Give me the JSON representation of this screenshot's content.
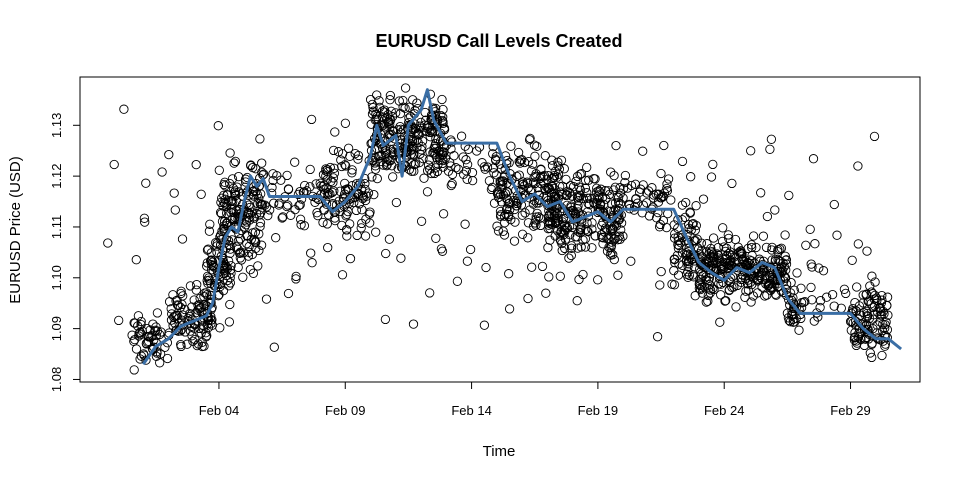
{
  "chart_data": {
    "type": "scatter",
    "title": "EURUSD Call Levels Created",
    "xlabel": "Time",
    "ylabel": "EURUSD Price (USD)",
    "xlim": [
      "2016-01-29T12:00",
      "2016-03-02T18:00"
    ],
    "ylim": [
      1.0795,
      1.1395
    ],
    "x_ticks": [
      {
        "date": "2016-02-04",
        "label": "Feb 04"
      },
      {
        "date": "2016-02-09",
        "label": "Feb 09"
      },
      {
        "date": "2016-02-14",
        "label": "Feb 14"
      },
      {
        "date": "2016-02-19",
        "label": "Feb 19"
      },
      {
        "date": "2016-02-24",
        "label": "Feb 24"
      },
      {
        "date": "2016-02-29",
        "label": "Feb 29"
      }
    ],
    "y_ticks": [
      1.08,
      1.09,
      1.1,
      1.11,
      1.12,
      1.13
    ],
    "y_tick_labels": [
      "1.08",
      "1.09",
      "1.10",
      "1.11",
      "1.12",
      "1.13"
    ],
    "grid": false,
    "series": [
      {
        "kind": "price-line",
        "color": "#3a6ea5",
        "points": [
          [
            "2016-02-01T00:00",
            1.083
          ],
          [
            "2016-02-01T12:00",
            1.0865
          ],
          [
            "2016-02-02T00:00",
            1.088
          ],
          [
            "2016-02-02T12:00",
            1.0905
          ],
          [
            "2016-02-03T00:00",
            1.0915
          ],
          [
            "2016-02-03T12:00",
            1.0925
          ],
          [
            "2016-02-03T18:00",
            1.095
          ],
          [
            "2016-02-04T00:00",
            1.102
          ],
          [
            "2016-02-04T06:00",
            1.108
          ],
          [
            "2016-02-04T12:00",
            1.11
          ],
          [
            "2016-02-04T18:00",
            1.109
          ],
          [
            "2016-02-05T00:00",
            1.115
          ],
          [
            "2016-02-05T06:00",
            1.12
          ],
          [
            "2016-02-05T12:00",
            1.118
          ],
          [
            "2016-02-05T18:00",
            1.1195
          ],
          [
            "2016-02-06T00:00",
            1.116
          ],
          [
            "2016-02-08T00:00",
            1.116
          ],
          [
            "2016-02-08T12:00",
            1.113
          ],
          [
            "2016-02-09T00:00",
            1.115
          ],
          [
            "2016-02-09T12:00",
            1.118
          ],
          [
            "2016-02-10T00:00",
            1.124
          ],
          [
            "2016-02-10T06:00",
            1.13
          ],
          [
            "2016-02-10T12:00",
            1.126
          ],
          [
            "2016-02-11T00:00",
            1.128
          ],
          [
            "2016-02-11T06:00",
            1.12
          ],
          [
            "2016-02-11T12:00",
            1.13
          ],
          [
            "2016-02-12T00:00",
            1.133
          ],
          [
            "2016-02-12T06:00",
            1.137
          ],
          [
            "2016-02-12T12:00",
            1.131
          ],
          [
            "2016-02-13T00:00",
            1.1265
          ],
          [
            "2016-02-15T00:00",
            1.1265
          ],
          [
            "2016-02-15T12:00",
            1.12
          ],
          [
            "2016-02-16T00:00",
            1.115
          ],
          [
            "2016-02-16T12:00",
            1.1165
          ],
          [
            "2016-02-17T00:00",
            1.114
          ],
          [
            "2016-02-17T12:00",
            1.115
          ],
          [
            "2016-02-18T00:00",
            1.111
          ],
          [
            "2016-02-18T12:00",
            1.112
          ],
          [
            "2016-02-19T00:00",
            1.113
          ],
          [
            "2016-02-19T12:00",
            1.111
          ],
          [
            "2016-02-20T00:00",
            1.1135
          ],
          [
            "2016-02-22T00:00",
            1.1135
          ],
          [
            "2016-02-22T12:00",
            1.108
          ],
          [
            "2016-02-23T00:00",
            1.103
          ],
          [
            "2016-02-23T12:00",
            1.101
          ],
          [
            "2016-02-24T00:00",
            1.0995
          ],
          [
            "2016-02-24T12:00",
            1.102
          ],
          [
            "2016-02-25T00:00",
            1.101
          ],
          [
            "2016-02-25T12:00",
            1.103
          ],
          [
            "2016-02-26T00:00",
            1.102
          ],
          [
            "2016-02-26T12:00",
            1.096
          ],
          [
            "2016-02-27T00:00",
            1.093
          ],
          [
            "2016-02-29T00:00",
            1.093
          ],
          [
            "2016-02-29T12:00",
            1.09
          ],
          [
            "2016-03-01T00:00",
            1.088
          ],
          [
            "2016-03-01T12:00",
            1.088
          ],
          [
            "2016-03-02T00:00",
            1.086
          ]
        ]
      },
      {
        "kind": "call-levels",
        "marker": "open-circle",
        "color": "#000000",
        "clusters": [
          {
            "t0": "2016-01-31T12:00",
            "t1": "2016-02-02T00:00",
            "lo": 1.08,
            "hi": 1.095,
            "n": 55
          },
          {
            "t0": "2016-02-02T00:00",
            "t1": "2016-02-03T18:00",
            "lo": 1.084,
            "hi": 1.1,
            "n": 100
          },
          {
            "t0": "2016-02-03T12:00",
            "t1": "2016-02-04T12:00",
            "lo": 1.088,
            "hi": 1.115,
            "n": 80
          },
          {
            "t0": "2016-02-04T00:00",
            "t1": "2016-02-05T18:00",
            "lo": 1.098,
            "hi": 1.128,
            "n": 160
          },
          {
            "t0": "2016-02-05T18:00",
            "t1": "2016-02-08T00:00",
            "lo": 1.108,
            "hi": 1.123,
            "n": 40
          },
          {
            "t0": "2016-02-08T00:00",
            "t1": "2016-02-10T00:00",
            "lo": 1.105,
            "hi": 1.128,
            "n": 110
          },
          {
            "t0": "2016-02-10T00:00",
            "t1": "2016-02-13T00:00",
            "lo": 1.115,
            "hi": 1.139,
            "n": 260
          },
          {
            "t0": "2016-02-13T00:00",
            "t1": "2016-02-15T12:00",
            "lo": 1.115,
            "hi": 1.13,
            "n": 40
          },
          {
            "t0": "2016-02-15T00:00",
            "t1": "2016-02-17T12:00",
            "lo": 1.105,
            "hi": 1.129,
            "n": 160
          },
          {
            "t0": "2016-02-17T00:00",
            "t1": "2016-02-20T00:00",
            "lo": 1.1,
            "hi": 1.125,
            "n": 230
          },
          {
            "t0": "2016-02-20T00:00",
            "t1": "2016-02-22T00:00",
            "lo": 1.108,
            "hi": 1.125,
            "n": 40
          },
          {
            "t0": "2016-02-22T00:00",
            "t1": "2016-02-23T00:00",
            "lo": 1.095,
            "hi": 1.117,
            "n": 70
          },
          {
            "t0": "2016-02-23T00:00",
            "t1": "2016-02-26T12:00",
            "lo": 1.093,
            "hi": 1.11,
            "n": 280
          },
          {
            "t0": "2016-02-26T12:00",
            "t1": "2016-02-27T06:00",
            "lo": 1.089,
            "hi": 1.1,
            "n": 30
          },
          {
            "t0": "2016-02-27T00:00",
            "t1": "2016-02-29T00:00",
            "lo": 1.09,
            "hi": 1.1,
            "n": 12
          },
          {
            "t0": "2016-02-29T00:00",
            "t1": "2016-03-01T12:00",
            "lo": 1.082,
            "hi": 1.102,
            "n": 110
          },
          {
            "t0": "2016-01-30T12:00",
            "t1": "2016-03-01T00:00",
            "lo": 1.08,
            "hi": 1.139,
            "n": 180
          }
        ]
      }
    ]
  }
}
